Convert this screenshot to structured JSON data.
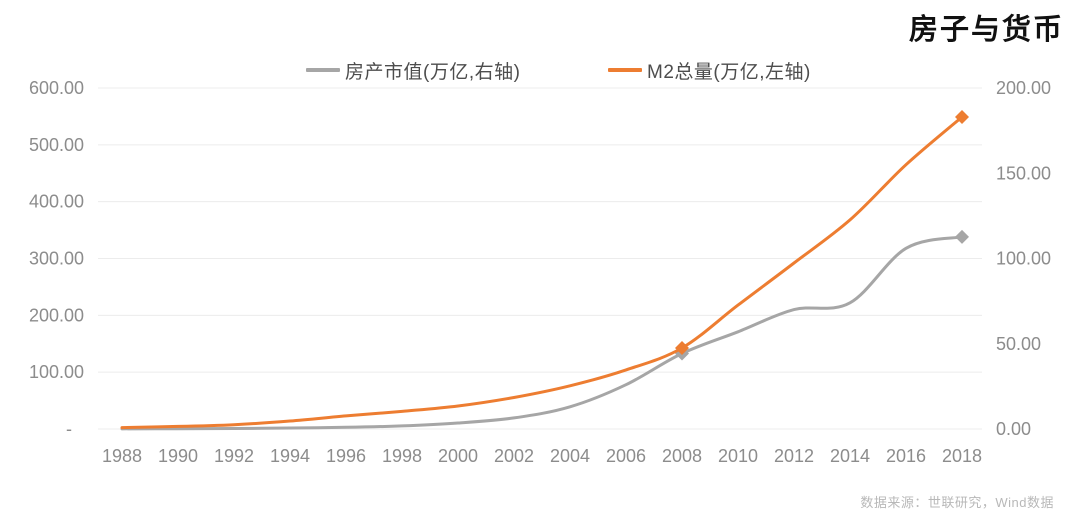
{
  "title": "房子与货币",
  "source_note": "数据来源：世联研究，Wind数据",
  "colors": {
    "property_line": "#A6A6A6",
    "m2_line": "#ED7D31",
    "gridline": "#ECECEC",
    "axis_text": "#8C8C8C",
    "legend_text": "#4d4d4d",
    "title_text": "#111111",
    "source_text": "#b8b8b8"
  },
  "chart_data": {
    "type": "line",
    "title": "房子与货币",
    "x": [
      1988,
      1990,
      1992,
      1994,
      1996,
      1998,
      2000,
      2002,
      2004,
      2006,
      2008,
      2010,
      2012,
      2014,
      2016,
      2018
    ],
    "x_tick_labels": [
      "1988",
      "1990",
      "1992",
      "1994",
      "1996",
      "1998",
      "2000",
      "2002",
      "2004",
      "2006",
      "2008",
      "2010",
      "2012",
      "2014",
      "2016",
      "2018"
    ],
    "series": [
      {
        "name": "房产市值(万亿,右轴)",
        "axis": "right",
        "color": "#A6A6A6",
        "values": [
          0.1,
          0.2,
          0.3,
          0.6,
          1.0,
          1.8,
          3.5,
          6.5,
          13.0,
          26.0,
          44.3,
          57.0,
          70.0,
          74.0,
          106.0,
          112.7
        ],
        "marker_years": [
          2008,
          2018
        ],
        "marker": "diamond"
      },
      {
        "name": "M2总量(万亿,左轴)",
        "axis": "left",
        "color": "#ED7D31",
        "values": [
          2.4,
          4.5,
          7.5,
          14.0,
          23.0,
          31.0,
          40.5,
          55.5,
          76.0,
          104.0,
          142.5,
          218.0,
          292.0,
          368.0,
          465.0,
          549.0
        ],
        "marker_years": [
          2008,
          2018
        ],
        "marker": "diamond"
      }
    ],
    "left_axis": {
      "min": 0,
      "max": 600,
      "tick_step": 100,
      "tick_labels": [
        "600.00",
        "500.00",
        "400.00",
        "300.00",
        "200.00",
        "100.00",
        "-"
      ]
    },
    "right_axis": {
      "min": 0,
      "max": 200,
      "tick_step": 50,
      "tick_labels": [
        "200.00",
        "150.00",
        "100.00",
        "50.00",
        "0.00"
      ]
    },
    "grid": true,
    "legend_position": "top"
  }
}
